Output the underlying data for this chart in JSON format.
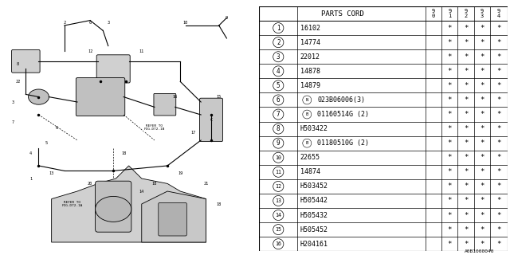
{
  "diagram_label": "A0B1000040",
  "table_header_text": "PARTS CORD",
  "year_cols": [
    "9\n0",
    "9\n1",
    "9\n2",
    "9\n3",
    "9\n4"
  ],
  "rows": [
    {
      "num": "1",
      "code": "16102",
      "prefix": "",
      "y90": "",
      "y91": "*",
      "y92": "*",
      "y93": "*",
      "y94": "*"
    },
    {
      "num": "2",
      "code": "14774",
      "prefix": "",
      "y90": "",
      "y91": "*",
      "y92": "*",
      "y93": "*",
      "y94": "*"
    },
    {
      "num": "3",
      "code": "22012",
      "prefix": "",
      "y90": "",
      "y91": "*",
      "y92": "*",
      "y93": "*",
      "y94": "*"
    },
    {
      "num": "4",
      "code": "14878",
      "prefix": "",
      "y90": "",
      "y91": "*",
      "y92": "*",
      "y93": "*",
      "y94": "*"
    },
    {
      "num": "5",
      "code": "14879",
      "prefix": "",
      "y90": "",
      "y91": "*",
      "y92": "*",
      "y93": "*",
      "y94": "*"
    },
    {
      "num": "6",
      "code": "023B06006(3)",
      "prefix": "N",
      "y90": "",
      "y91": "*",
      "y92": "*",
      "y93": "*",
      "y94": "*"
    },
    {
      "num": "7",
      "code": "01160514G (2)",
      "prefix": "B",
      "y90": "",
      "y91": "*",
      "y92": "*",
      "y93": "*",
      "y94": "*"
    },
    {
      "num": "8",
      "code": "H503422",
      "prefix": "",
      "y90": "",
      "y91": "*",
      "y92": "*",
      "y93": "*",
      "y94": "*"
    },
    {
      "num": "9",
      "code": "01180510G (2)",
      "prefix": "B",
      "y90": "",
      "y91": "*",
      "y92": "*",
      "y93": "*",
      "y94": "*"
    },
    {
      "num": "10",
      "code": "22655",
      "prefix": "",
      "y90": "",
      "y91": "*",
      "y92": "*",
      "y93": "*",
      "y94": "*"
    },
    {
      "num": "11",
      "code": "14874",
      "prefix": "",
      "y90": "",
      "y91": "*",
      "y92": "*",
      "y93": "*",
      "y94": "*"
    },
    {
      "num": "12",
      "code": "H503452",
      "prefix": "",
      "y90": "",
      "y91": "*",
      "y92": "*",
      "y93": "*",
      "y94": "*"
    },
    {
      "num": "13",
      "code": "H505442",
      "prefix": "",
      "y90": "",
      "y91": "*",
      "y92": "*",
      "y93": "*",
      "y94": "*"
    },
    {
      "num": "14",
      "code": "H505432",
      "prefix": "",
      "y90": "",
      "y91": "*",
      "y92": "*",
      "y93": "*",
      "y94": "*"
    },
    {
      "num": "15",
      "code": "H505452",
      "prefix": "",
      "y90": "",
      "y91": "*",
      "y92": "*",
      "y93": "*",
      "y94": "*"
    },
    {
      "num": "16",
      "code": "H204161",
      "prefix": "",
      "y90": "",
      "y91": "*",
      "y92": "*",
      "y93": "*",
      "y94": "*"
    }
  ],
  "bg_color": "#ffffff",
  "line_color": "#000000",
  "font_size": 6.5,
  "diagram_bg": "#e8e8e8"
}
